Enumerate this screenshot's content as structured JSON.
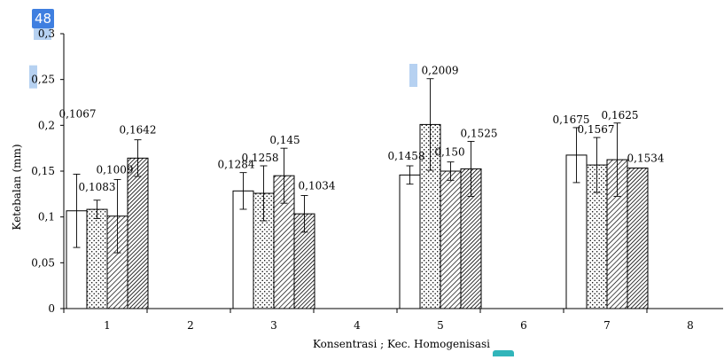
{
  "page_badge": "48",
  "colors": {
    "axis": "#000000",
    "bar_stroke": "#000000",
    "badge": "#3f7fe0",
    "corner_badge": "#31b5ba",
    "highlight": "#a9c9ee"
  },
  "chart_data": {
    "type": "bar",
    "title": "",
    "xlabel": "Konsentrasi ; Kec. Homogenisasi",
    "ylabel": "Ketebalan (mm)",
    "ylim": [
      0,
      0.3
    ],
    "y_ticks": [
      "0",
      "0,05",
      "0,1",
      "0,15",
      "0,2",
      "0,25",
      "0,3"
    ],
    "x_ticks": [
      "1",
      "2",
      "3",
      "4",
      "5",
      "6",
      "7",
      "8"
    ],
    "grid": false,
    "legend": "none",
    "groups": [
      {
        "x": 1,
        "bars": [
          {
            "pattern": "plain",
            "value": 0.1067,
            "err": 0.04,
            "label": "0,1067"
          },
          {
            "pattern": "dots",
            "value": 0.1083,
            "err": 0.01,
            "label": "0,1083"
          },
          {
            "pattern": "diag",
            "value": 0.1009,
            "err": 0.04,
            "label": "0,1009"
          },
          {
            "pattern": "hatch",
            "value": 0.1642,
            "err": 0.02,
            "label": "0,1642"
          }
        ]
      },
      {
        "x": 3,
        "bars": [
          {
            "pattern": "plain",
            "value": 0.1284,
            "err": 0.02,
            "label": "0,1284"
          },
          {
            "pattern": "dots",
            "value": 0.1258,
            "err": 0.03,
            "label": "0,1258"
          },
          {
            "pattern": "diag",
            "value": 0.145,
            "err": 0.03,
            "label": "0,145"
          },
          {
            "pattern": "hatch",
            "value": 0.1034,
            "err": 0.02,
            "label": "0,1034"
          }
        ]
      },
      {
        "x": 5,
        "bars": [
          {
            "pattern": "plain",
            "value": 0.1458,
            "err": 0.01,
            "label": "0,1458"
          },
          {
            "pattern": "dots",
            "value": 0.2009,
            "err": 0.05,
            "label": "0,2009"
          },
          {
            "pattern": "diag",
            "value": 0.15,
            "err": 0.01,
            "label": "0,150"
          },
          {
            "pattern": "hatch",
            "value": 0.1525,
            "err": 0.03,
            "label": "0,1525"
          }
        ]
      },
      {
        "x": 7,
        "bars": [
          {
            "pattern": "plain",
            "value": 0.1675,
            "err": 0.03,
            "label": "0,1675"
          },
          {
            "pattern": "dots",
            "value": 0.1567,
            "err": 0.03,
            "label": "0,1567"
          },
          {
            "pattern": "diag",
            "value": 0.1625,
            "err": 0.04,
            "label": "0,1625"
          },
          {
            "pattern": "hatch",
            "value": 0.1534,
            "err": 0,
            "label": "0,1534"
          }
        ]
      }
    ]
  }
}
